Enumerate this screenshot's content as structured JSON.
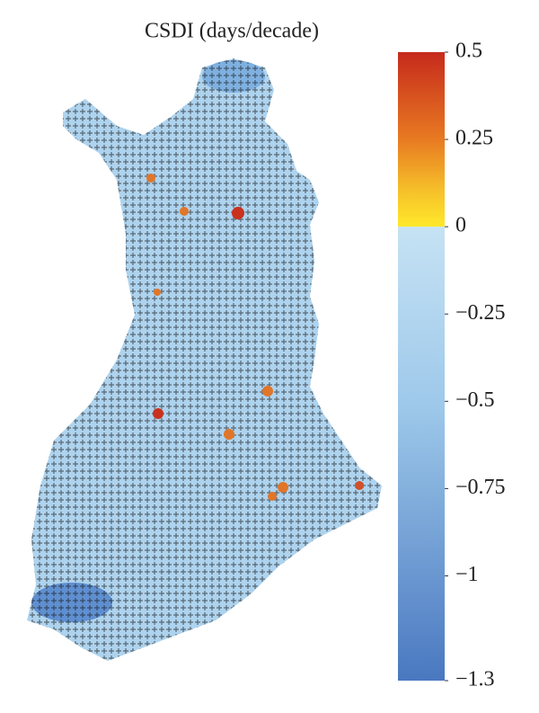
{
  "title": "CSDI (days/decade)",
  "colorbar": {
    "ylim": [
      -1.3,
      0.5
    ],
    "ticks": [
      0.5,
      0.25,
      0,
      {
        "value": -0.25,
        "label": "−0.25"
      },
      {
        "value": -0.5,
        "label": "−0.5"
      },
      {
        "value": -0.75,
        "label": "−0.75"
      },
      {
        "value": -1,
        "label": "−1"
      },
      {
        "value": -1.3,
        "label": "−1.3"
      }
    ]
  }
}
